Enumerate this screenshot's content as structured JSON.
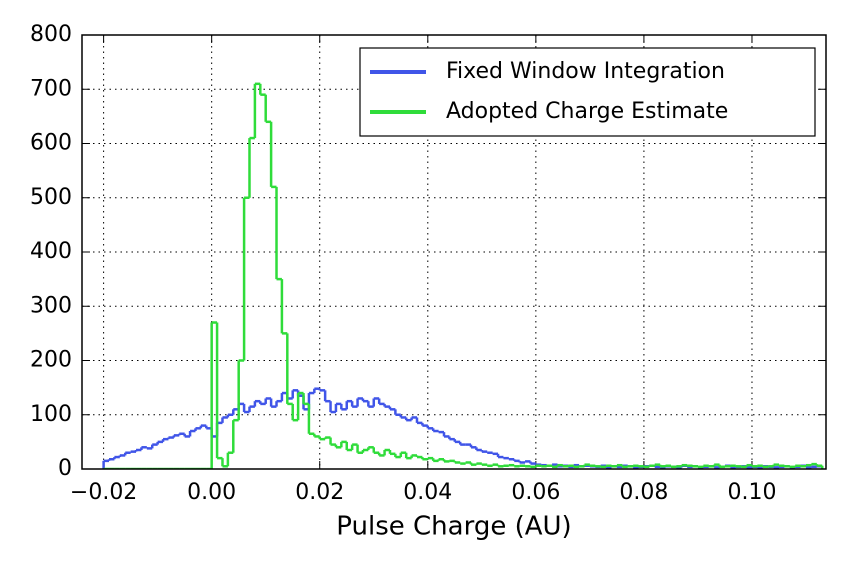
{
  "chart_data": {
    "type": "histogram",
    "xlabel": "Pulse Charge (AU)",
    "xlim": [
      -0.024,
      0.1137
    ],
    "ylim": [
      0,
      800
    ],
    "xticks": [
      {
        "value": -0.02,
        "label": "−0.02"
      },
      {
        "value": 0,
        "label": "0.00"
      },
      0.02,
      0.04,
      0.06,
      0.08,
      {
        "value": 0.1,
        "label": "0.10"
      }
    ],
    "yticks": [
      0,
      100,
      200,
      300,
      400,
      500,
      600,
      700,
      800
    ],
    "grid": true,
    "legend": "upper right",
    "bins": [
      -0.02,
      -0.019,
      -0.018,
      -0.017,
      -0.016,
      -0.015,
      -0.014,
      -0.013,
      -0.012,
      -0.011,
      -0.01,
      -0.009,
      -0.008,
      -0.007,
      -0.006,
      -0.005,
      -0.004,
      -0.003,
      -0.002,
      -0.001,
      0,
      0.001,
      0.002,
      0.003,
      0.004,
      0.005,
      0.006,
      0.007,
      0.008,
      0.009,
      0.01,
      0.011,
      0.012,
      0.013,
      0.014,
      0.015,
      0.016,
      0.017,
      0.018,
      0.019,
      0.02,
      0.021,
      0.022,
      0.023,
      0.024,
      0.025,
      0.026,
      0.027,
      0.028,
      0.029,
      0.03,
      0.031,
      0.032,
      0.033,
      0.034,
      0.035,
      0.036,
      0.037,
      0.038,
      0.039,
      0.04,
      0.041,
      0.042,
      0.043,
      0.044,
      0.045,
      0.046,
      0.047,
      0.048,
      0.049,
      0.05,
      0.051,
      0.052,
      0.053,
      0.054,
      0.055,
      0.056,
      0.057,
      0.058,
      0.059,
      0.06,
      0.061,
      0.062,
      0.063,
      0.064,
      0.065,
      0.066,
      0.067,
      0.068,
      0.069,
      0.07,
      0.071,
      0.072,
      0.073,
      0.074,
      0.075,
      0.076,
      0.077,
      0.078,
      0.079,
      0.08,
      0.081,
      0.082,
      0.083,
      0.084,
      0.085,
      0.086,
      0.087,
      0.088,
      0.089,
      0.09,
      0.091,
      0.092,
      0.093,
      0.094,
      0.095,
      0.096,
      0.097,
      0.098,
      0.099,
      0.1,
      0.101,
      0.102,
      0.103,
      0.104,
      0.105,
      0.106,
      0.107,
      0.108,
      0.109,
      0.11,
      0.111,
      0.112,
      0.113
    ],
    "series": [
      {
        "name": "Fixed Window Integration",
        "color": "#4055e8",
        "values": [
          15,
          18,
          22,
          25,
          30,
          32,
          35,
          40,
          38,
          45,
          50,
          55,
          58,
          62,
          65,
          60,
          70,
          75,
          80,
          75,
          60,
          85,
          95,
          100,
          110,
          120,
          105,
          115,
          125,
          120,
          130,
          115,
          125,
          140,
          130,
          145,
          135,
          110,
          140,
          148,
          145,
          125,
          105,
          120,
          110,
          125,
          115,
          130,
          125,
          115,
          130,
          120,
          115,
          110,
          100,
          95,
          90,
          95,
          85,
          80,
          75,
          70,
          68,
          60,
          55,
          50,
          45,
          45,
          40,
          35,
          32,
          30,
          28,
          22,
          20,
          18,
          15,
          12,
          14,
          10,
          8,
          7,
          6,
          8,
          5,
          6,
          4,
          7,
          5,
          6,
          5,
          4,
          6,
          3,
          5,
          4,
          6,
          5,
          3,
          4,
          5,
          6,
          4,
          3,
          5,
          4,
          3,
          6,
          4,
          5,
          3,
          4,
          5,
          3,
          4,
          6,
          3,
          4,
          5,
          3,
          4,
          3,
          5,
          4,
          3,
          4,
          5,
          3,
          4,
          6,
          3,
          4,
          5
        ]
      },
      {
        "name": "Adopted Charge Estimate",
        "color": "#2fdc3a",
        "values": [
          0,
          0,
          0,
          0,
          0,
          0,
          0,
          0,
          0,
          0,
          0,
          0,
          0,
          0,
          0,
          0,
          0,
          0,
          0,
          0,
          270,
          20,
          5,
          30,
          90,
          200,
          500,
          610,
          710,
          690,
          640,
          520,
          350,
          250,
          120,
          90,
          140,
          120,
          65,
          60,
          55,
          58,
          45,
          40,
          50,
          35,
          45,
          30,
          35,
          40,
          30,
          25,
          35,
          28,
          22,
          30,
          20,
          25,
          22,
          18,
          20,
          15,
          18,
          14,
          15,
          12,
          10,
          12,
          8,
          10,
          8,
          6,
          8,
          5,
          6,
          7,
          5,
          6,
          5,
          4,
          6,
          5,
          6,
          4,
          7,
          5,
          6,
          4,
          5,
          8,
          6,
          5,
          4,
          6,
          5,
          7,
          4,
          5,
          6,
          5,
          4,
          6,
          8,
          5,
          6,
          4,
          5,
          7,
          6,
          5,
          4,
          6,
          5,
          8,
          4,
          5,
          6,
          5,
          4,
          7,
          5,
          6,
          4,
          5,
          8,
          6,
          5,
          4,
          6,
          5,
          7,
          9,
          6
        ]
      }
    ]
  }
}
